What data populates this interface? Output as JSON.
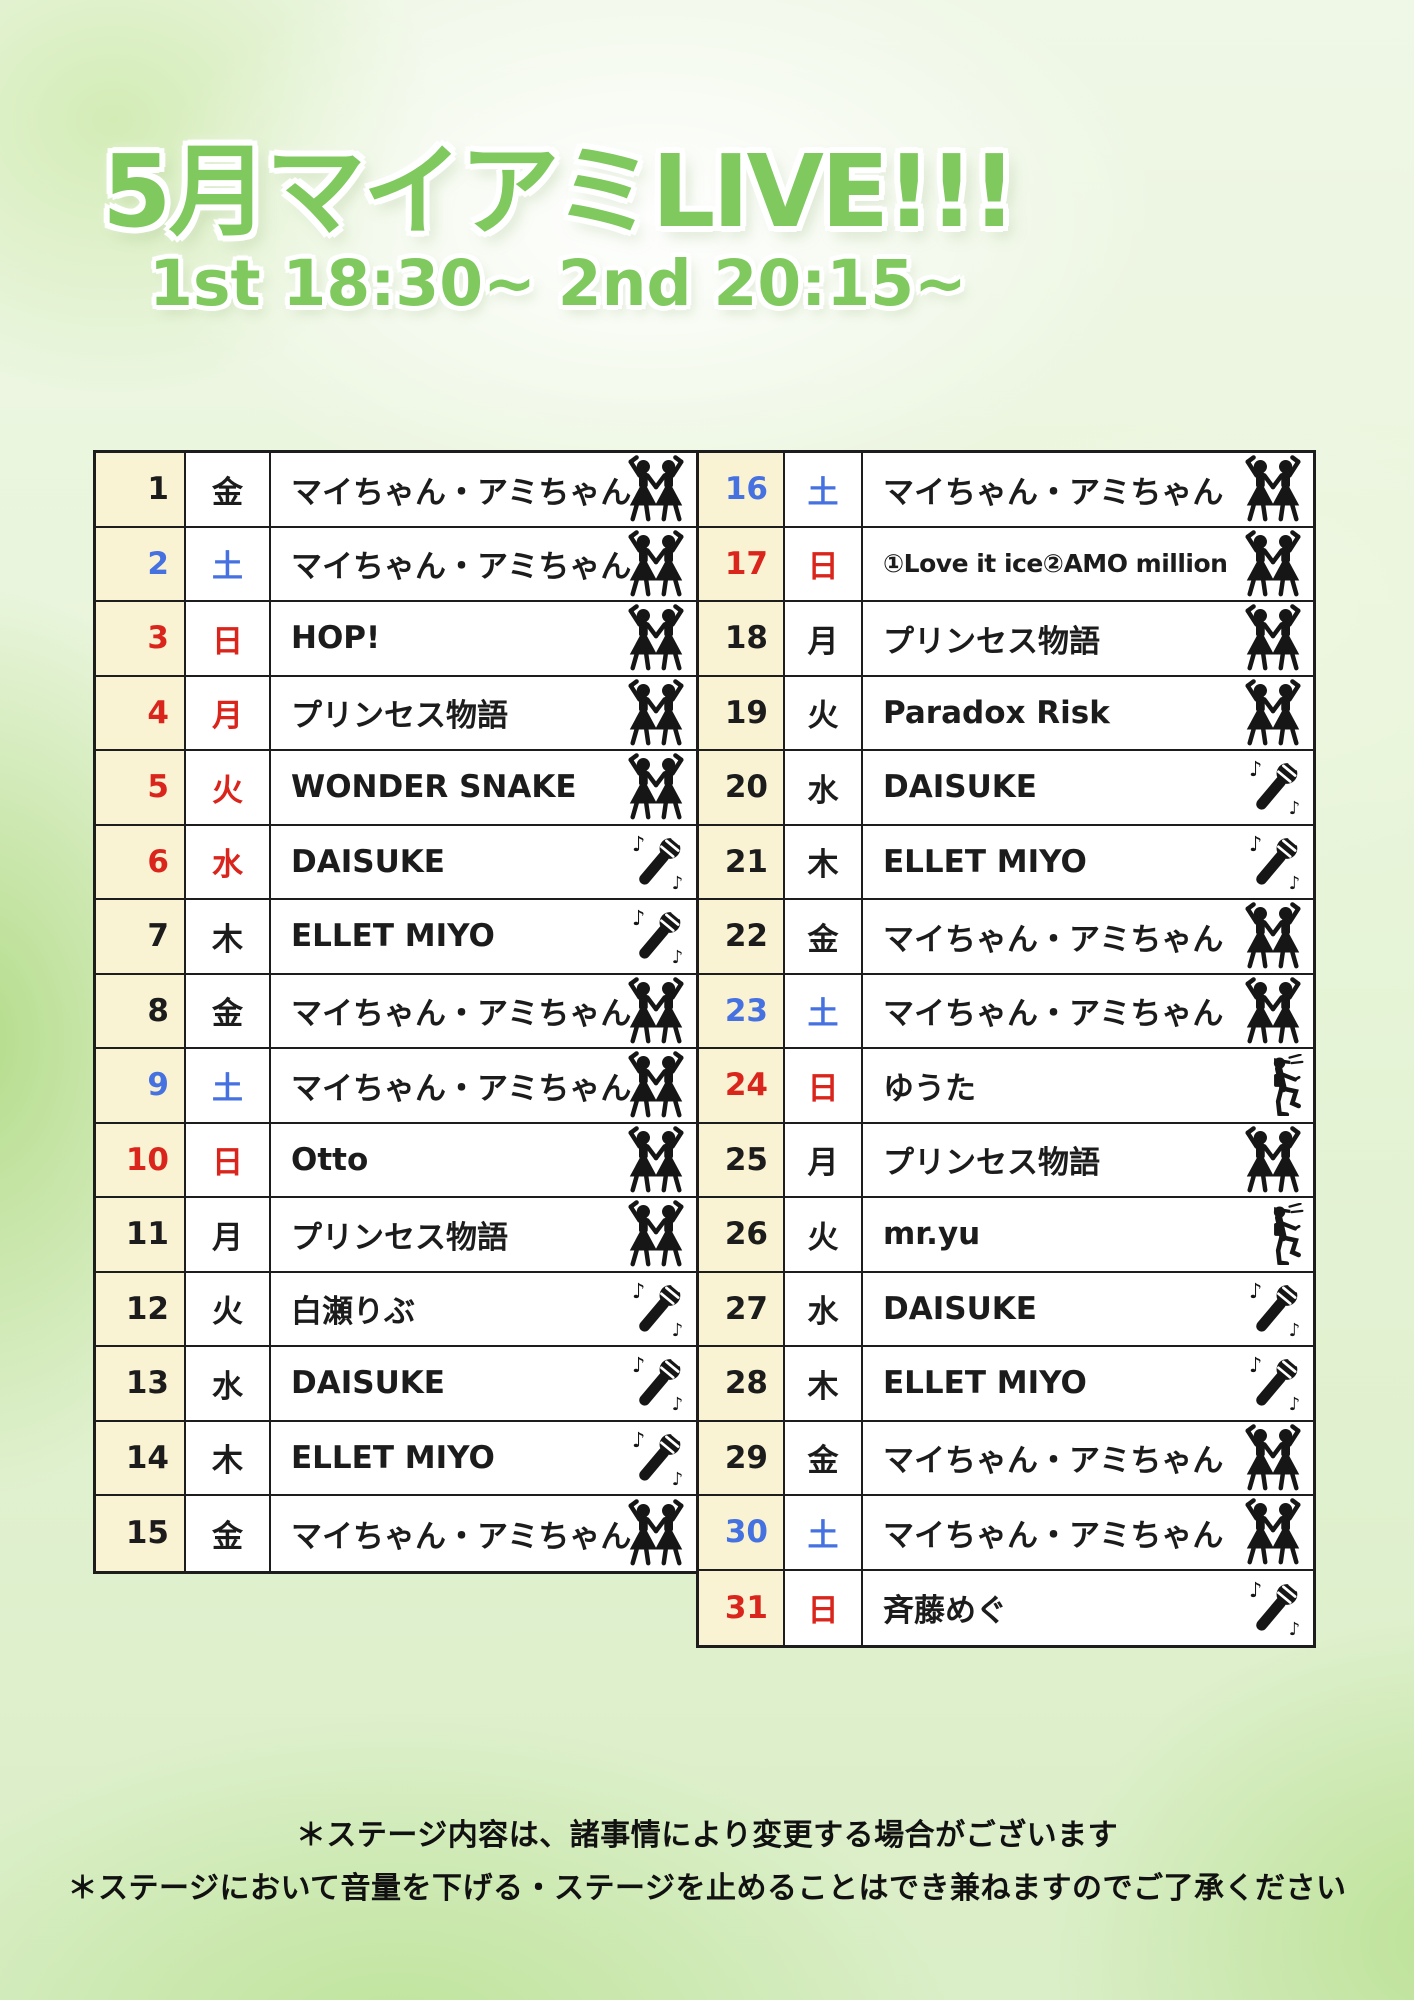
{
  "header": {
    "title": "5月マイアミLIVE!!!",
    "subtitle": "1st 18:30~ 2nd 20:15~"
  },
  "colors": {
    "red": "#da251c",
    "blue": "#4671e0",
    "black": "#1c1c1c",
    "title_green": "#7fc95f",
    "date_cell_bg": "#faf3d3"
  },
  "icon_names": {
    "dancers": "idol-duo-dancers",
    "mic": "microphone-with-notes",
    "performer": "solo-performer"
  },
  "tables": [
    {
      "side": "left",
      "rows": [
        {
          "date": "1",
          "day": "金",
          "color": "black",
          "performer": "マイちゃん・アミちゃん",
          "icon": "dancers"
        },
        {
          "date": "2",
          "day": "土",
          "color": "blue",
          "performer": "マイちゃん・アミちゃん",
          "icon": "dancers"
        },
        {
          "date": "3",
          "day": "日",
          "color": "red",
          "performer": "HOP!",
          "icon": "dancers"
        },
        {
          "date": "4",
          "day": "月",
          "color": "red",
          "performer": "プリンセス物語",
          "icon": "dancers"
        },
        {
          "date": "5",
          "day": "火",
          "color": "red",
          "performer": "WONDER SNAKE",
          "icon": "dancers"
        },
        {
          "date": "6",
          "day": "水",
          "color": "red",
          "performer": "DAISUKE",
          "icon": "mic"
        },
        {
          "date": "7",
          "day": "木",
          "color": "black",
          "performer": "ELLET MIYO",
          "icon": "mic"
        },
        {
          "date": "8",
          "day": "金",
          "color": "black",
          "performer": "マイちゃん・アミちゃん",
          "icon": "dancers"
        },
        {
          "date": "9",
          "day": "土",
          "color": "blue",
          "performer": "マイちゃん・アミちゃん",
          "icon": "dancers"
        },
        {
          "date": "10",
          "day": "日",
          "color": "red",
          "performer": "Otto",
          "icon": "dancers"
        },
        {
          "date": "11",
          "day": "月",
          "color": "black",
          "performer": "プリンセス物語",
          "icon": "dancers"
        },
        {
          "date": "12",
          "day": "火",
          "color": "black",
          "performer": "白瀬りぶ",
          "icon": "mic"
        },
        {
          "date": "13",
          "day": "水",
          "color": "black",
          "performer": "DAISUKE",
          "icon": "mic"
        },
        {
          "date": "14",
          "day": "木",
          "color": "black",
          "performer": "ELLET MIYO",
          "icon": "mic"
        },
        {
          "date": "15",
          "day": "金",
          "color": "black",
          "performer": "マイちゃん・アミちゃん",
          "icon": "dancers"
        }
      ]
    },
    {
      "side": "right",
      "rows": [
        {
          "date": "16",
          "day": "土",
          "color": "blue",
          "performer": "マイちゃん・アミちゃん",
          "icon": "dancers"
        },
        {
          "date": "17",
          "day": "日",
          "color": "red",
          "performer": "①Love it ice②AMO million",
          "icon": "dancers"
        },
        {
          "date": "18",
          "day": "月",
          "color": "black",
          "performer": "プリンセス物語",
          "icon": "dancers"
        },
        {
          "date": "19",
          "day": "火",
          "color": "black",
          "performer": "Paradox Risk",
          "icon": "dancers"
        },
        {
          "date": "20",
          "day": "水",
          "color": "black",
          "performer": "DAISUKE",
          "icon": "mic"
        },
        {
          "date": "21",
          "day": "木",
          "color": "black",
          "performer": "ELLET MIYO",
          "icon": "mic"
        },
        {
          "date": "22",
          "day": "金",
          "color": "black",
          "performer": "マイちゃん・アミちゃん",
          "icon": "dancers"
        },
        {
          "date": "23",
          "day": "土",
          "color": "blue",
          "performer": "マイちゃん・アミちゃん",
          "icon": "dancers"
        },
        {
          "date": "24",
          "day": "日",
          "color": "red",
          "performer": "ゆうた",
          "icon": "performer"
        },
        {
          "date": "25",
          "day": "月",
          "color": "black",
          "performer": "プリンセス物語",
          "icon": "dancers"
        },
        {
          "date": "26",
          "day": "火",
          "color": "black",
          "performer": "mr.yu",
          "icon": "performer"
        },
        {
          "date": "27",
          "day": "水",
          "color": "black",
          "performer": "DAISUKE",
          "icon": "mic"
        },
        {
          "date": "28",
          "day": "木",
          "color": "black",
          "performer": "ELLET MIYO",
          "icon": "mic"
        },
        {
          "date": "29",
          "day": "金",
          "color": "black",
          "performer": "マイちゃん・アミちゃん",
          "icon": "dancers"
        },
        {
          "date": "30",
          "day": "土",
          "color": "blue",
          "performer": "マイちゃん・アミちゃん",
          "icon": "dancers"
        },
        {
          "date": "31",
          "day": "日",
          "color": "red",
          "performer": "斉藤めぐ",
          "icon": "mic"
        }
      ]
    }
  ],
  "footer": {
    "lines": [
      "＊ステージ内容は、諸事情により変更する場合がございます",
      "＊ステージにおいて音量を下げる・ステージを止めることはでき兼ねますのでご了承ください"
    ]
  }
}
